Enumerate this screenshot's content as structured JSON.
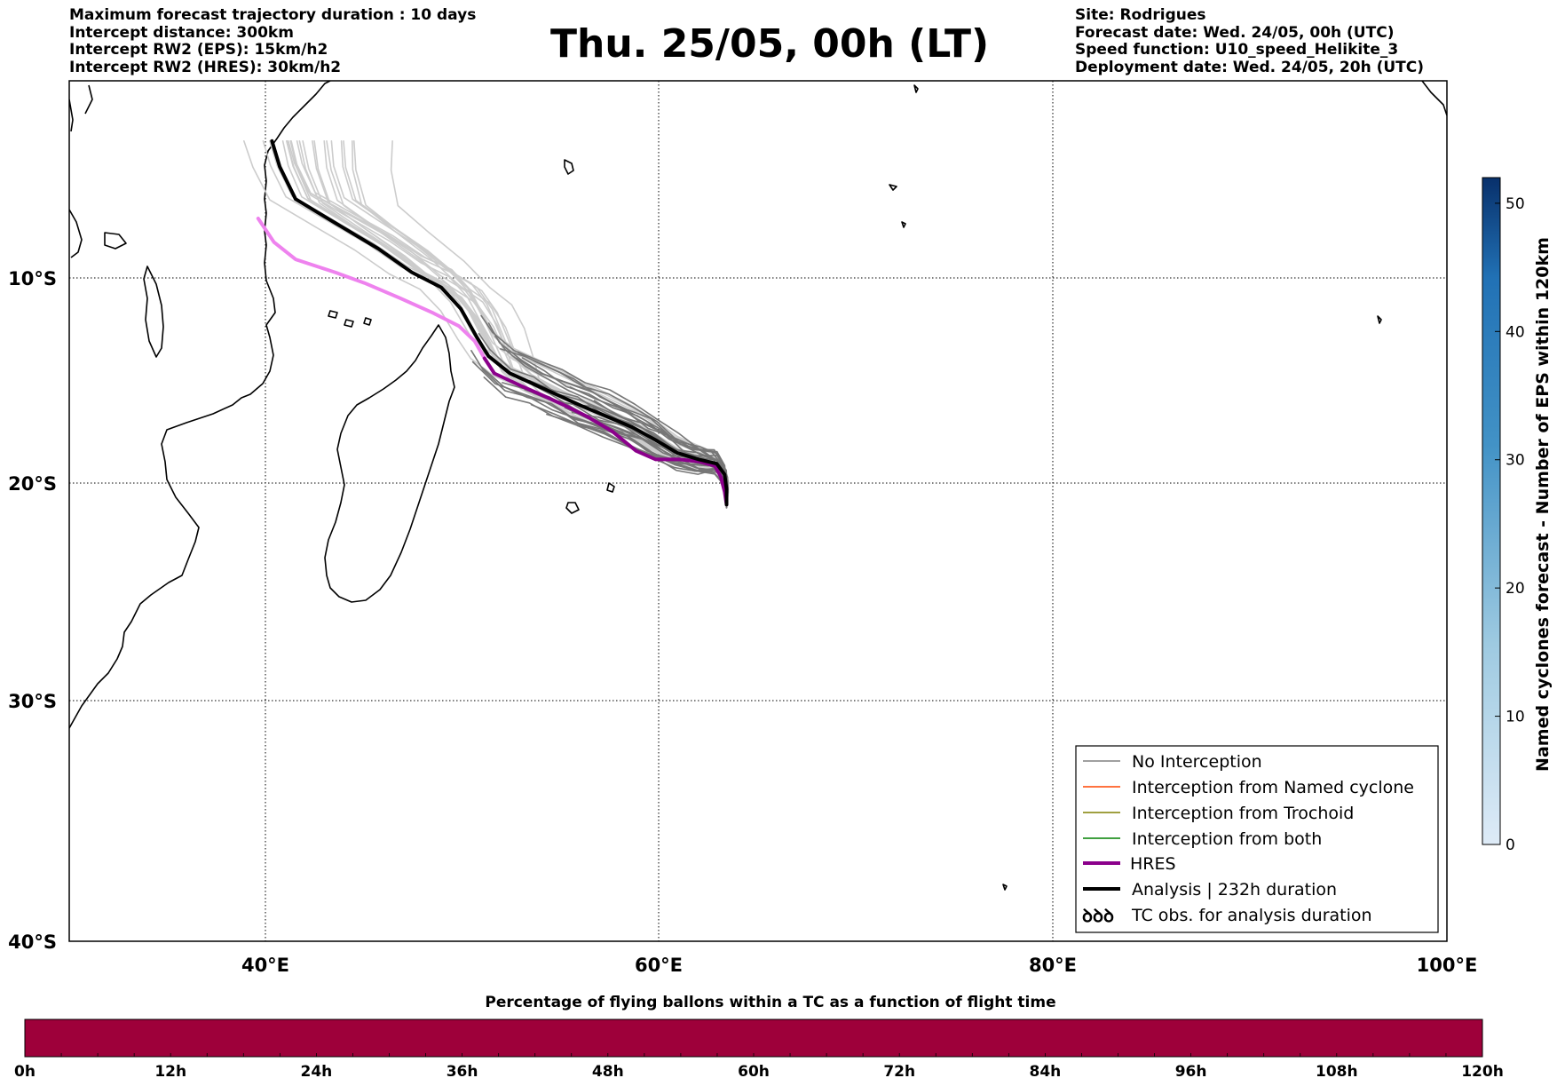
{
  "header_left": [
    "Maximum forecast trajectory duration : 10 days",
    "Intercept distance: 300km",
    "Intercept RW2 (EPS):  15km/h2",
    "Intercept RW2 (HRES): 30km/h2"
  ],
  "header_right": [
    "Site: Rodrigues",
    "Forecast date: Wed. 24/05, 00h (UTC)",
    "Speed function: U10_speed_Helikite_3",
    "Deployment date: Wed. 24/05, 20h (UTC)"
  ],
  "title": "Thu. 25/05, 00h (LT)",
  "map": {
    "lon_range": [
      30,
      100
    ],
    "lat_range": [
      -40,
      0
    ],
    "lat_ticks": [
      "10°S",
      "20°S",
      "30°S",
      "40°S"
    ],
    "lon_ticks": [
      "40°E",
      "60°E",
      "80°E",
      "100°E"
    ],
    "launch_site": {
      "lon": 63.4,
      "lat": -19.7
    },
    "hres_track": [
      [
        63.4,
        -19.7
      ],
      [
        63.3,
        -19.1
      ],
      [
        63.1,
        -18.4
      ],
      [
        62.8,
        -17.9
      ],
      [
        62.0,
        -17.7
      ],
      [
        61.0,
        -17.6
      ],
      [
        59.8,
        -17.6
      ],
      [
        58.8,
        -17.2
      ],
      [
        57.6,
        -16.3
      ],
      [
        56.3,
        -15.6
      ],
      [
        55.2,
        -15.1
      ],
      [
        54.0,
        -14.6
      ],
      [
        53.0,
        -14.2
      ],
      [
        51.6,
        -13.6
      ],
      [
        51.1,
        -12.9
      ],
      [
        50.6,
        -12.1
      ],
      [
        49.8,
        -11.4
      ],
      [
        48.5,
        -10.8
      ],
      [
        46.8,
        -10.1
      ],
      [
        45.0,
        -9.4
      ],
      [
        43.5,
        -8.9
      ],
      [
        41.5,
        -8.3
      ],
      [
        40.4,
        -7.5
      ],
      [
        39.6,
        -6.4
      ]
    ],
    "analysis_track": [
      [
        63.4,
        -19.7
      ],
      [
        63.4,
        -19.0
      ],
      [
        63.3,
        -18.3
      ],
      [
        62.9,
        -17.8
      ],
      [
        62.0,
        -17.6
      ],
      [
        60.9,
        -17.3
      ],
      [
        59.8,
        -16.7
      ],
      [
        58.6,
        -16.1
      ],
      [
        57.3,
        -15.6
      ],
      [
        56.0,
        -15.1
      ],
      [
        54.8,
        -14.6
      ],
      [
        53.6,
        -14.1
      ],
      [
        52.4,
        -13.6
      ],
      [
        51.3,
        -12.8
      ],
      [
        50.7,
        -11.9
      ],
      [
        49.9,
        -10.6
      ],
      [
        48.9,
        -9.6
      ],
      [
        47.4,
        -8.9
      ],
      [
        45.7,
        -7.8
      ],
      [
        43.5,
        -6.6
      ],
      [
        41.5,
        -5.5
      ],
      [
        40.7,
        -4.0
      ],
      [
        40.3,
        -2.8
      ]
    ],
    "colors": {
      "hres": "#8b008b",
      "hres_light": "#ee82ee",
      "analysis": "#000000",
      "no_interception": "#808080"
    }
  },
  "legend": {
    "items": [
      {
        "label": "No Interception",
        "color": "#808080"
      },
      {
        "label": "Interception from Named cyclone",
        "color": "#ff4500"
      },
      {
        "label": "Interception from Trochoid",
        "color": "#808000"
      },
      {
        "label": "Interception from both",
        "color": "#008000"
      },
      {
        "label": "HRES",
        "color": "#8b008b"
      },
      {
        "label": "Analysis | 232h duration",
        "color": "#000000"
      },
      {
        "label": "TC obs. for analysis duration",
        "color": "#000000"
      }
    ],
    "tc_symbol": "ꝺꝺꝺ"
  },
  "colorbar_right": {
    "label": "Named cyclones forecast - Number of EPS within 120km",
    "ticks": [
      "0",
      "10",
      "20",
      "30",
      "40",
      "50"
    ],
    "min": 0,
    "max": 52,
    "color_low": "#deebf7",
    "color_high": "#08306b"
  },
  "bottom_bar": {
    "title": "Percentage of flying ballons within a TC as a function of flight time",
    "labels": [
      "0h",
      "12h",
      "24h",
      "36h",
      "48h",
      "60h",
      "72h",
      "84h",
      "96h",
      "108h",
      "120h"
    ],
    "color": "#9e003a"
  }
}
